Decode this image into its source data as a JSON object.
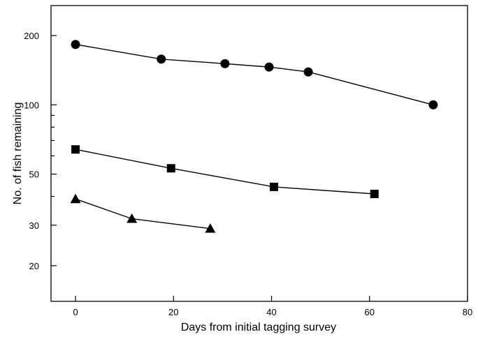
{
  "chart_data": {
    "type": "scatter",
    "xlabel": "Days from initial tagging survey",
    "ylabel": "No. of fish remaining",
    "xlim": [
      -5,
      80
    ],
    "ylim": [
      14,
      270
    ],
    "yscale": "log",
    "grid": false,
    "xticks": [
      0,
      20,
      40,
      60,
      80
    ],
    "xtick_labels": [
      "0",
      "20",
      "40",
      "60",
      "80"
    ],
    "yticks": [
      20,
      30,
      50,
      100,
      200
    ],
    "ytick_labels": [
      "20",
      "30",
      "50",
      "100",
      "200"
    ],
    "yminor_ticks": [
      40,
      60,
      70,
      80,
      90
    ],
    "series": [
      {
        "marker": "circle",
        "x": [
          0,
          17.5,
          30.5,
          39.5,
          47.5,
          73
        ],
        "y": [
          183,
          158,
          151,
          146,
          139,
          100
        ]
      },
      {
        "marker": "square",
        "x": [
          0,
          19.5,
          40.5,
          61
        ],
        "y": [
          64,
          53,
          44,
          41
        ]
      },
      {
        "marker": "triangle",
        "x": [
          0,
          11.5,
          27.5
        ],
        "y": [
          39,
          32,
          29
        ]
      }
    ]
  }
}
